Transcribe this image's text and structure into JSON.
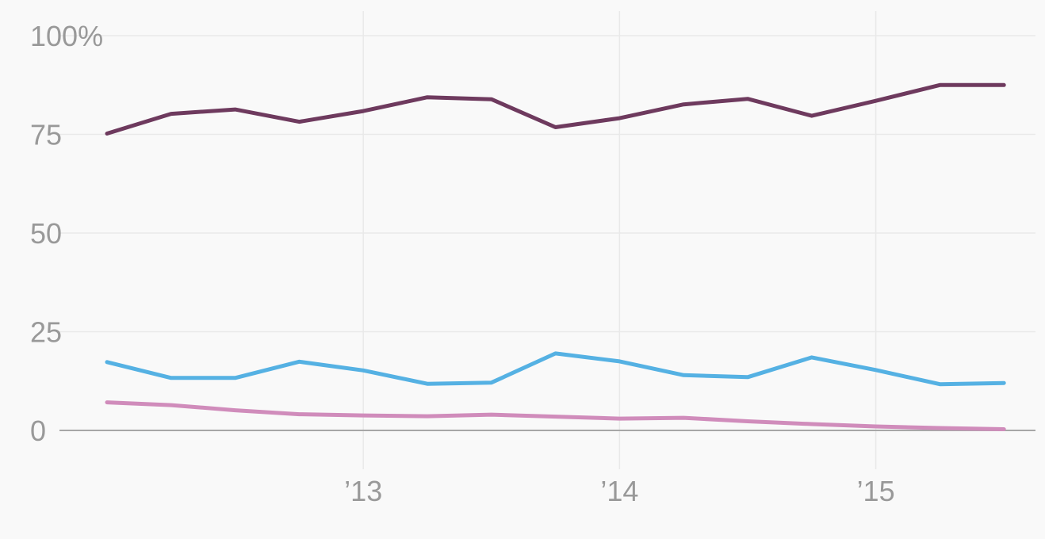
{
  "chart_data": {
    "type": "line",
    "x_quarters": [
      "2012 Q1",
      "2012 Q2",
      "2012 Q3",
      "2012 Q4",
      "2013 Q1",
      "2013 Q2",
      "2013 Q3",
      "2013 Q4",
      "2014 Q1",
      "2014 Q2",
      "2014 Q3",
      "2014 Q4",
      "2015 Q1",
      "2015 Q2",
      "2015 Q3"
    ],
    "x_tick_labels": [
      "’13",
      "’14",
      "’15"
    ],
    "y_ticks": [
      0,
      25,
      50,
      75,
      100
    ],
    "y_tick_labels": [
      "0",
      "25",
      "50",
      "75",
      "100%"
    ],
    "ylim": [
      0,
      100
    ],
    "grid": true,
    "series": [
      {
        "color": "#6e3a5e",
        "values": [
          75.2,
          80.2,
          81.3,
          78.2,
          80.9,
          84.4,
          83.9,
          76.8,
          79.1,
          82.6,
          84.0,
          79.7,
          83.5,
          87.5,
          87.5
        ]
      },
      {
        "color": "#55b1e3",
        "values": [
          17.3,
          13.3,
          13.3,
          17.4,
          15.2,
          11.8,
          12.1,
          19.5,
          17.5,
          14.0,
          13.5,
          18.5,
          15.3,
          11.7,
          12.0
        ]
      },
      {
        "color": "#d08cbb",
        "values": [
          7.1,
          6.4,
          5.1,
          4.1,
          3.8,
          3.6,
          4.0,
          3.5,
          3.0,
          3.2,
          2.3,
          1.6,
          1.0,
          0.6,
          0.3
        ]
      }
    ]
  }
}
